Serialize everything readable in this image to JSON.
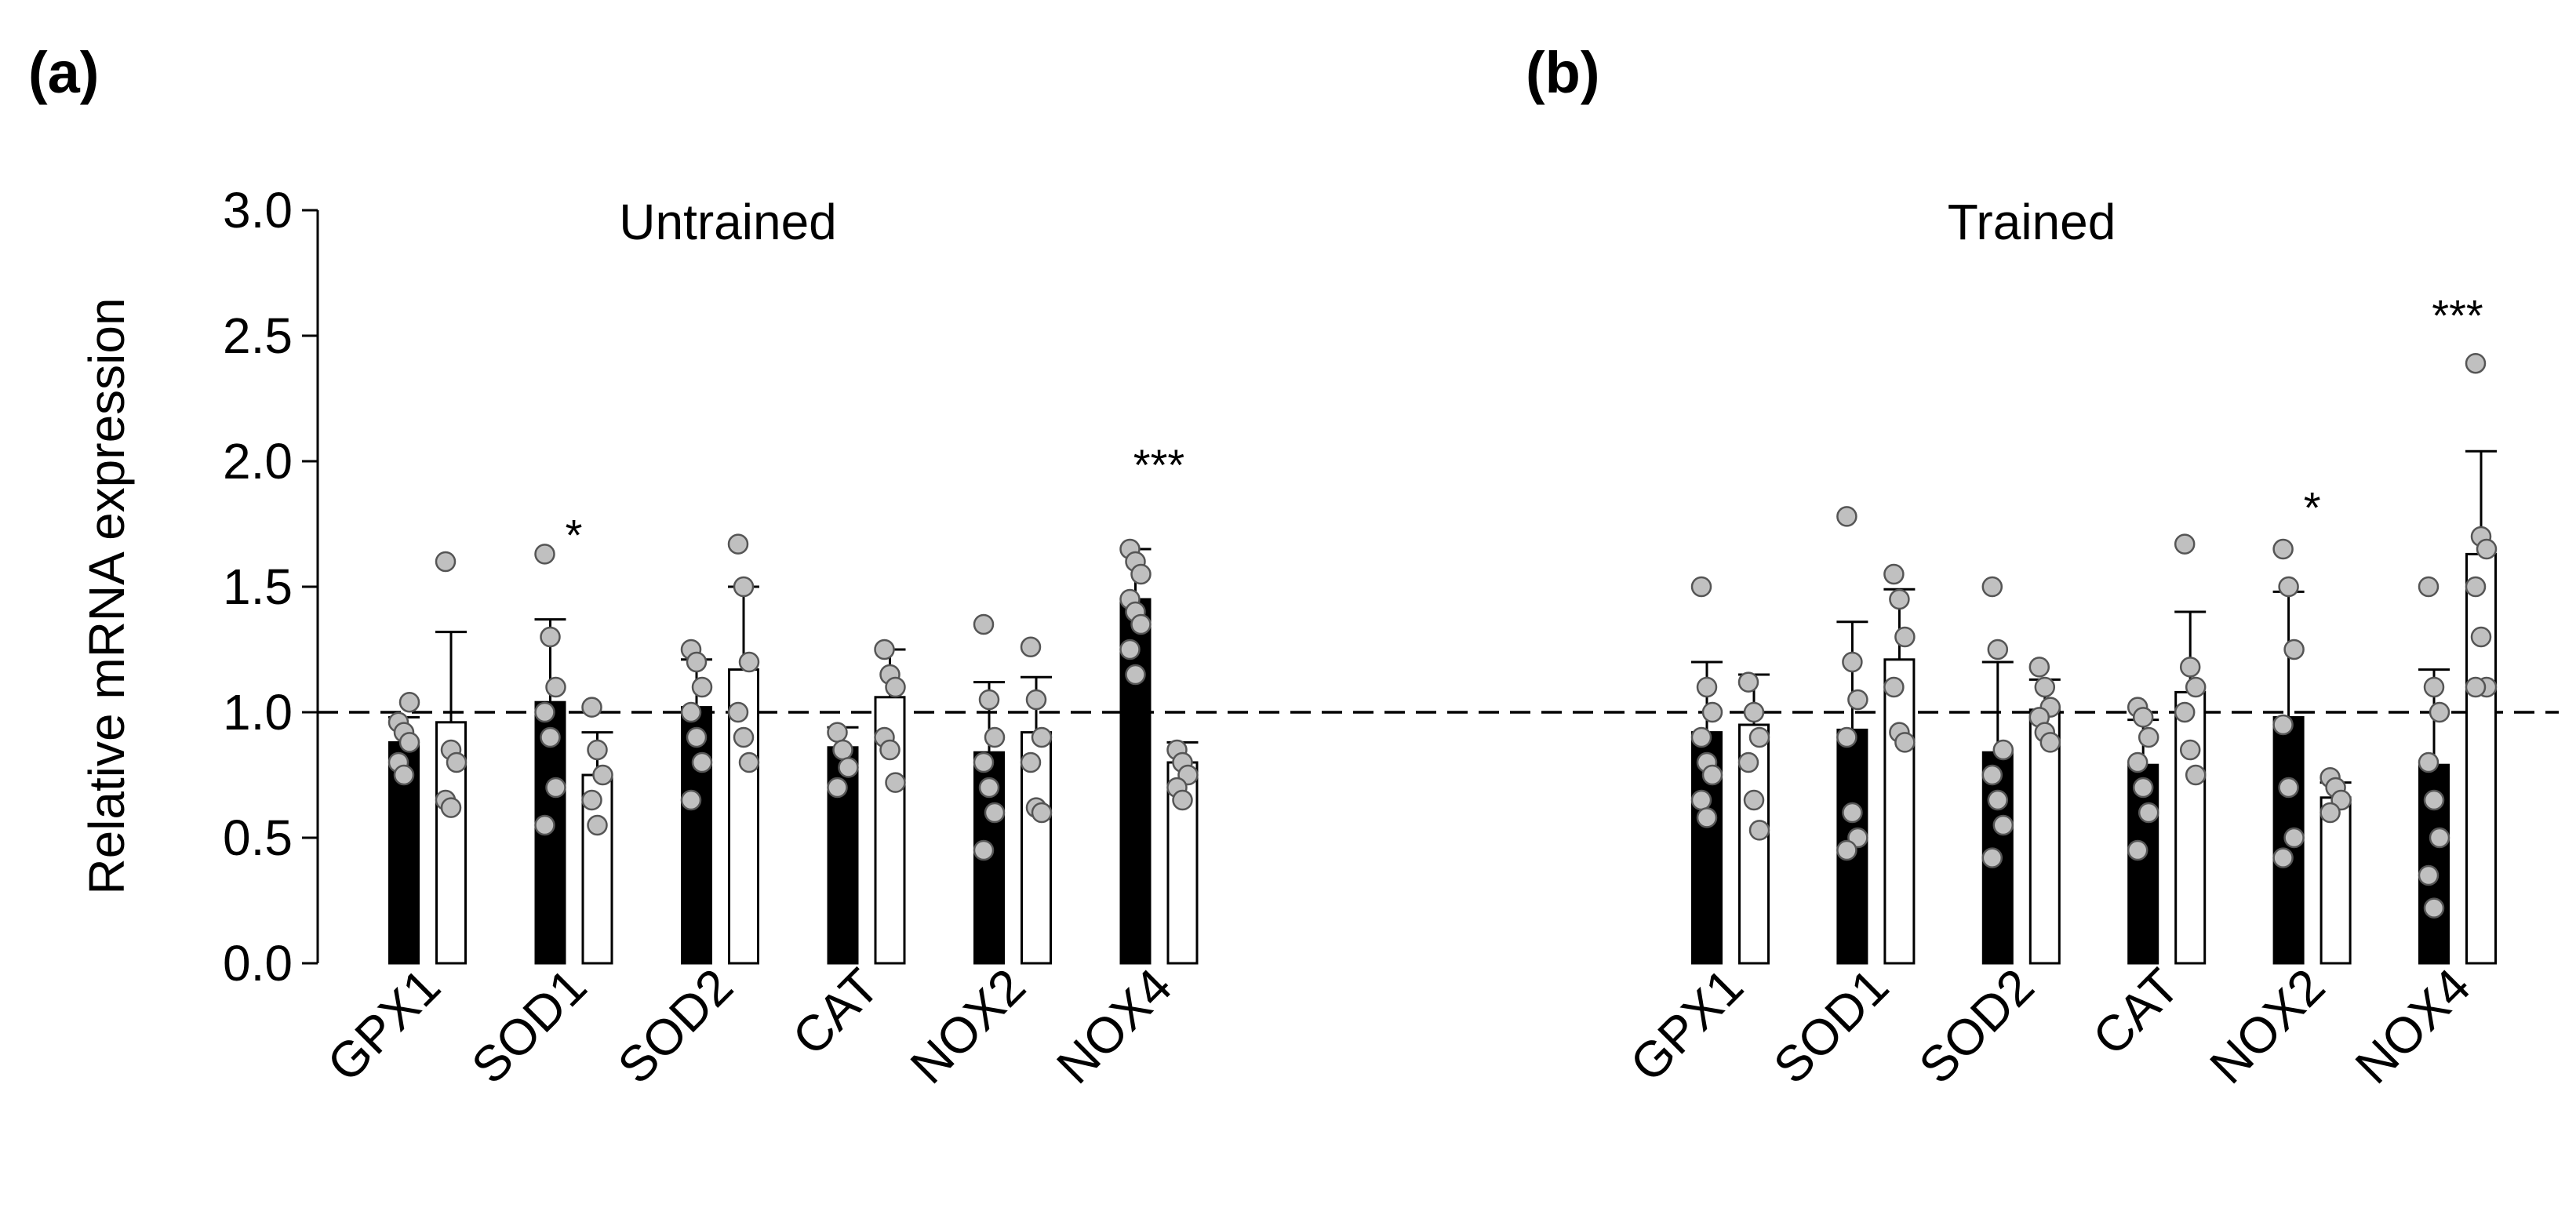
{
  "panels": {
    "a": "(a)",
    "b": "(b)"
  },
  "chart_data": {
    "type": "bar",
    "ylabel": "Relative mRNA expression",
    "ylim": [
      0,
      3.0
    ],
    "yticks": [
      "0.0",
      "0.5",
      "1.0",
      "1.5",
      "2.0",
      "2.5",
      "3.0"
    ],
    "reference_line": 1.0,
    "colors": {
      "filled": "#000000",
      "open": "#ffffff",
      "points": "#c0c0c0"
    },
    "groups": [
      {
        "title": "Untrained",
        "categories": [
          "GPX1",
          "SOD1",
          "SOD2",
          "CAT",
          "NOX2",
          "NOX4"
        ],
        "series": [
          {
            "name": "filled",
            "values": [
              0.88,
              1.04,
              1.02,
              0.86,
              0.84,
              1.45
            ],
            "errors": [
              0.1,
              0.33,
              0.19,
              0.08,
              0.28,
              0.2
            ],
            "points": [
              [
                0.96,
                0.92,
                0.88,
                0.8,
                0.75,
                1.04
              ],
              [
                1.63,
                1.3,
                1.1,
                1.0,
                0.9,
                0.7,
                0.55
              ],
              [
                1.25,
                1.2,
                1.1,
                1.0,
                0.9,
                0.8,
                0.65
              ],
              [
                0.92,
                0.85,
                0.78,
                0.7
              ],
              [
                1.35,
                1.05,
                0.9,
                0.8,
                0.7,
                0.6,
                0.45
              ],
              [
                1.65,
                1.6,
                1.55,
                1.45,
                1.4,
                1.35,
                1.25,
                1.15
              ]
            ]
          },
          {
            "name": "open",
            "values": [
              0.96,
              0.75,
              1.17,
              1.06,
              0.92,
              0.8
            ],
            "errors": [
              0.36,
              0.17,
              0.33,
              0.19,
              0.22,
              0.08
            ],
            "points": [
              [
                1.6,
                0.85,
                0.8,
                0.65,
                0.62
              ],
              [
                1.02,
                0.85,
                0.75,
                0.65,
                0.55
              ],
              [
                1.67,
                1.5,
                1.2,
                1.0,
                0.9,
                0.8
              ],
              [
                1.25,
                1.15,
                1.1,
                0.9,
                0.85,
                0.72
              ],
              [
                1.26,
                1.05,
                0.9,
                0.8,
                0.62,
                0.6
              ],
              [
                0.85,
                0.8,
                0.75,
                0.7,
                0.65
              ]
            ]
          }
        ],
        "significance": [
          "",
          "*",
          "",
          "",
          "",
          "***"
        ]
      },
      {
        "title": "Trained",
        "categories": [
          "GPX1",
          "SOD1",
          "SOD2",
          "CAT",
          "NOX2",
          "NOX4"
        ],
        "series": [
          {
            "name": "filled",
            "values": [
              0.92,
              0.93,
              0.84,
              0.79,
              0.98,
              0.79
            ],
            "errors": [
              0.28,
              0.43,
              0.36,
              0.18,
              0.5,
              0.38
            ],
            "points": [
              [
                1.5,
                1.1,
                1.0,
                0.9,
                0.8,
                0.75,
                0.65,
                0.58
              ],
              [
                1.78,
                1.2,
                1.05,
                0.9,
                0.6,
                0.5,
                0.45
              ],
              [
                1.5,
                1.25,
                0.85,
                0.75,
                0.65,
                0.55,
                0.42
              ],
              [
                1.02,
                0.98,
                0.9,
                0.8,
                0.7,
                0.6,
                0.45
              ],
              [
                1.65,
                1.5,
                1.25,
                0.95,
                0.7,
                0.5,
                0.42
              ],
              [
                1.5,
                1.1,
                1.0,
                0.8,
                0.65,
                0.5,
                0.35,
                0.22
              ]
            ]
          },
          {
            "name": "open",
            "values": [
              0.95,
              1.21,
              1.01,
              1.08,
              0.66,
              1.63
            ],
            "errors": [
              0.2,
              0.28,
              0.12,
              0.32,
              0.06,
              0.41
            ],
            "points": [
              [
                1.12,
                1.0,
                0.9,
                0.8,
                0.65,
                0.53
              ],
              [
                1.55,
                1.45,
                1.3,
                1.1,
                0.92,
                0.88
              ],
              [
                1.18,
                1.1,
                1.02,
                0.98,
                0.92,
                0.88
              ],
              [
                1.67,
                1.18,
                1.1,
                1.0,
                0.85,
                0.75
              ],
              [
                0.74,
                0.7,
                0.65,
                0.6
              ],
              [
                2.39,
                1.7,
                1.65,
                1.5,
                1.3,
                1.1,
                1.1
              ]
            ]
          }
        ],
        "significance": [
          "",
          "",
          "",
          "",
          "*",
          "***"
        ]
      }
    ]
  }
}
